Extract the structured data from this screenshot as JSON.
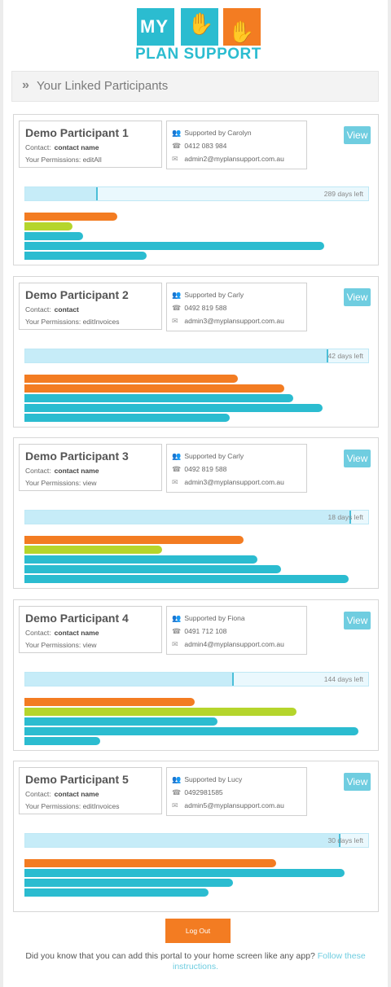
{
  "logo": {
    "my": "MY",
    "brand": "PLAN SUPPORT"
  },
  "section": {
    "chevron": "»",
    "title": "Your Linked Participants"
  },
  "colors": {
    "orange": "#f37c22",
    "green": "#b5d52c",
    "teal": "#2bbcd0",
    "light_teal": "#c6ecf8"
  },
  "labels": {
    "contact": "Contact:",
    "permissions": "Your Permissions:",
    "view": "View"
  },
  "participants": [
    {
      "name": "Demo Participant 1",
      "contact": "contact name",
      "permissions": "editAll",
      "supported_by": "Supported by Carolyn",
      "phone": "0412 083 984",
      "email": "admin2@myplansupport.com.au",
      "days_left": "289 days left",
      "elapsed_fraction": 0.21,
      "bars": [
        {
          "color": "orange",
          "fraction": 0.27
        },
        {
          "color": "green",
          "fraction": 0.14
        },
        {
          "color": "teal",
          "fraction": 0.17
        },
        {
          "color": "teal",
          "fraction": 0.87
        },
        {
          "color": "teal",
          "fraction": 0.355
        }
      ]
    },
    {
      "name": "Demo Participant 2",
      "contact": "contact",
      "permissions": "editInvoices",
      "supported_by": "Supported by Carly",
      "phone": "0492 819 588",
      "email": "admin3@myplansupport.com.au",
      "days_left": "42 days left",
      "elapsed_fraction": 0.88,
      "bars": [
        {
          "color": "orange",
          "fraction": 0.62
        },
        {
          "color": "orange",
          "fraction": 0.755
        },
        {
          "color": "teal",
          "fraction": 0.78
        },
        {
          "color": "teal",
          "fraction": 0.865
        },
        {
          "color": "teal",
          "fraction": 0.595
        }
      ]
    },
    {
      "name": "Demo Participant 3",
      "contact": "contact name",
      "permissions": "view",
      "supported_by": "Supported by Carly",
      "phone": "0492 819 588",
      "email": "admin3@myplansupport.com.au",
      "days_left": "18 days left",
      "elapsed_fraction": 0.945,
      "bars": [
        {
          "color": "orange",
          "fraction": 0.635
        },
        {
          "color": "green",
          "fraction": 0.4
        },
        {
          "color": "teal",
          "fraction": 0.675
        },
        {
          "color": "teal",
          "fraction": 0.745
        },
        {
          "color": "teal",
          "fraction": 0.94
        }
      ]
    },
    {
      "name": "Demo Participant 4",
      "contact": "contact name",
      "permissions": "view",
      "supported_by": "Supported by Fiona",
      "phone": "0491 712 108",
      "email": "admin4@myplansupport.com.au",
      "days_left": "144 days left",
      "elapsed_fraction": 0.605,
      "bars": [
        {
          "color": "orange",
          "fraction": 0.495
        },
        {
          "color": "green",
          "fraction": 0.79
        },
        {
          "color": "teal",
          "fraction": 0.56
        },
        {
          "color": "teal",
          "fraction": 0.97
        },
        {
          "color": "teal",
          "fraction": 0.22
        }
      ]
    },
    {
      "name": "Demo Participant 5",
      "contact": "contact name",
      "permissions": "editInvoices",
      "supported_by": "Supported by Lucy",
      "phone": "0492981585",
      "email": "admin5@myplansupport.com.au",
      "days_left": "30 days left",
      "elapsed_fraction": 0.915,
      "bars": [
        {
          "color": "orange",
          "fraction": 0.73
        },
        {
          "color": "teal",
          "fraction": 0.93
        },
        {
          "color": "teal",
          "fraction": 0.605
        },
        {
          "color": "teal",
          "fraction": 0.535
        }
      ]
    }
  ],
  "footer": {
    "logout": "Log Out",
    "tip_text": "Did you know that you can add this portal to your home screen like any app?",
    "tip_link": "Follow these instructions."
  }
}
